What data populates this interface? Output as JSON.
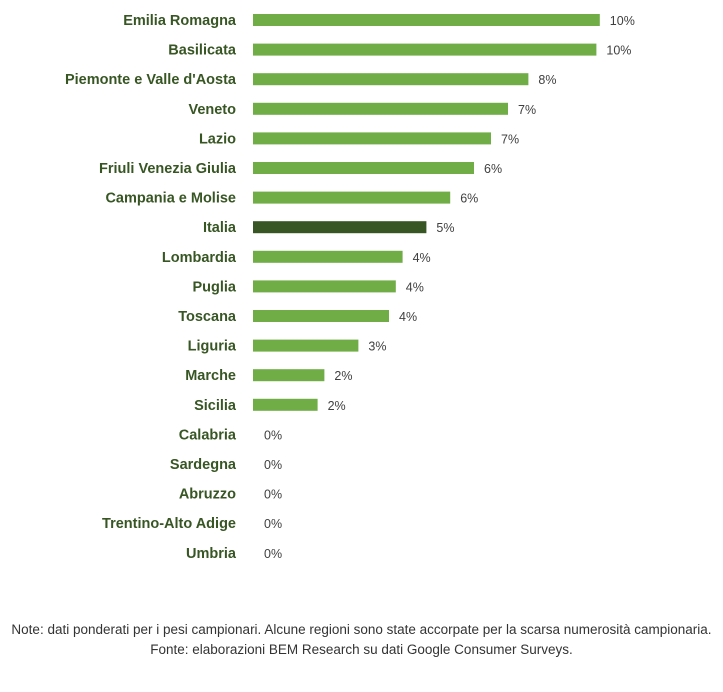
{
  "colors": {
    "bar": "#70ad47",
    "highlight_bar": "#375623",
    "category_text": "#375623",
    "value_text": "#404040"
  },
  "chart_data": {
    "type": "bar",
    "orientation": "horizontal",
    "grid": false,
    "legend": "none",
    "xlim": [
      0,
      12
    ],
    "highlight": "Italia",
    "categories": [
      "Emilia Romagna",
      "Basilicata",
      "Piemonte e Valle d'Aosta",
      "Veneto",
      "Lazio",
      "Friuli Venezia Giulia",
      "Campania e Molise",
      "Italia",
      "Lombardia",
      "Puglia",
      "Toscana",
      "Liguria",
      "Marche",
      "Sicilia",
      "Calabria",
      "Sardegna",
      "Abruzzo",
      "Trentino-Alto Adige",
      "Umbria"
    ],
    "values": [
      10.2,
      10.1,
      8.1,
      7.5,
      7.0,
      6.5,
      5.8,
      5.1,
      4.4,
      4.2,
      4.0,
      3.1,
      2.1,
      1.9,
      0,
      0,
      0,
      0,
      0
    ],
    "value_labels": [
      "10%",
      "10%",
      "8%",
      "7%",
      "7%",
      "6%",
      "6%",
      "5%",
      "4%",
      "4%",
      "4%",
      "3%",
      "2%",
      "2%",
      "0%",
      "0%",
      "0%",
      "0%",
      "0%"
    ]
  },
  "notes": {
    "line1": "Note: dati ponderati per i pesi campionari. Alcune regioni sono state accorpate per la scarsa numerosità campionaria.",
    "line2": "Fonte: elaborazioni BEM Research su dati Google Consumer Surveys."
  }
}
